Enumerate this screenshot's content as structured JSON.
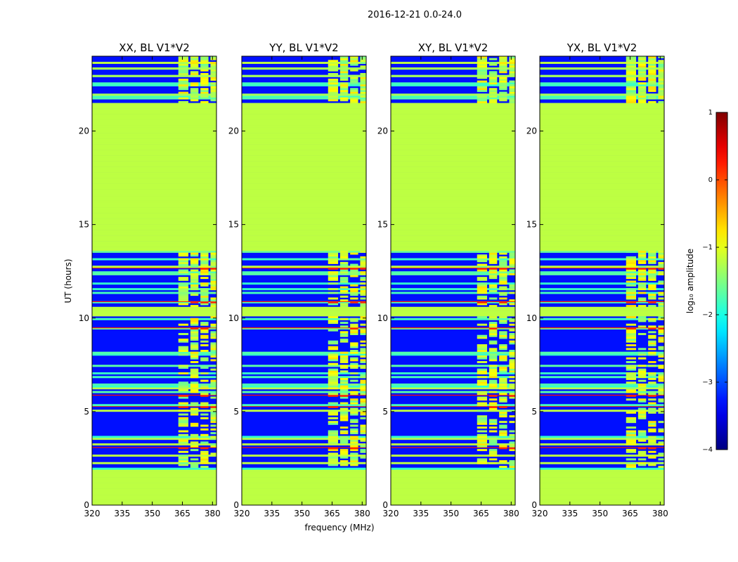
{
  "figure_title": "2016-12-21 0.0-24.0",
  "chart_data": {
    "type": "heatmap",
    "suptitle": "2016-12-21 0.0-24.0",
    "xlabel": "frequency (MHz)",
    "ylabel": "UT (hours)",
    "xlim": [
      320,
      382
    ],
    "ylim": [
      0,
      24
    ],
    "xticks": [
      320,
      335,
      350,
      365,
      380
    ],
    "yticks": [
      0,
      5,
      10,
      15,
      20
    ],
    "panels": [
      {
        "title": "XX, BL V1*V2",
        "pol": "XX"
      },
      {
        "title": "YY, BL V1*V2",
        "pol": "YY"
      },
      {
        "title": "XY, BL V1*V2",
        "pol": "XY"
      },
      {
        "title": "YX, BL V1*V2",
        "pol": "YX"
      }
    ],
    "colorbar": {
      "label": "log₁₀ amplitude",
      "range": [
        -4,
        1
      ],
      "ticks": [
        1,
        0,
        -1,
        -2,
        -3,
        -4
      ],
      "tick_labels": [
        "1",
        "0",
        "−1",
        "−2",
        "−3",
        "−4"
      ],
      "colormap": "jet"
    },
    "flagged_value": -1.2,
    "background_value": -3.3,
    "flagged_time_ranges": [
      [
        0.0,
        1.9
      ],
      [
        10.1,
        10.6
      ],
      [
        13.6,
        21.5
      ]
    ],
    "rfi_channels_MHz": [
      [
        363,
        368
      ],
      [
        369,
        373
      ],
      [
        374,
        378
      ],
      [
        379,
        382
      ]
    ],
    "strong_rfi_times": [
      3.0,
      5.2,
      5.8,
      9.4,
      10.8,
      12.6
    ]
  }
}
